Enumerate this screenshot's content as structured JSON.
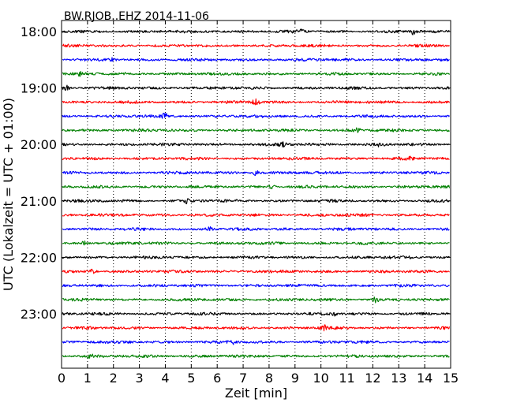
{
  "chart_data": {
    "type": "line",
    "title": "BW.RJOB..EHZ 2014-11-06",
    "xlabel": "Zeit  [min]",
    "ylabel": "UTC (Lokalzeit = UTC + 01:00)",
    "xlim": [
      0,
      15
    ],
    "x_ticks": [
      "0",
      "1",
      "2",
      "3",
      "4",
      "5",
      "6",
      "7",
      "8",
      "9",
      "10",
      "11",
      "12",
      "13",
      "14",
      "15"
    ],
    "y_ticks": [
      {
        "row": 0,
        "label": "18:00"
      },
      {
        "row": 4,
        "label": "19:00"
      },
      {
        "row": 8,
        "label": "20:00"
      },
      {
        "row": 12,
        "label": "21:00"
      },
      {
        "row": 16,
        "label": "22:00"
      },
      {
        "row": 20,
        "label": "23:00"
      }
    ],
    "grid": {
      "x": true,
      "style": "dotted"
    },
    "trace_colors": [
      "#000000",
      "#ff0000",
      "#0000ff",
      "#008000"
    ],
    "traces": [
      {
        "start": "18:00",
        "color": "#000000",
        "events": [
          {
            "minute": 9.2,
            "amp": 1.5
          },
          {
            "minute": 13.6,
            "amp": 2.2
          }
        ]
      },
      {
        "start": "18:15",
        "color": "#ff0000",
        "events": []
      },
      {
        "start": "18:30",
        "color": "#0000ff",
        "events": [
          {
            "minute": 2.0,
            "amp": 1.4
          }
        ]
      },
      {
        "start": "18:45",
        "color": "#008000",
        "events": [
          {
            "minute": 0.7,
            "amp": 1.3
          }
        ]
      },
      {
        "start": "19:00",
        "color": "#000000",
        "events": [
          {
            "minute": 0.2,
            "amp": 1.8
          }
        ]
      },
      {
        "start": "19:15",
        "color": "#ff0000",
        "events": [
          {
            "minute": 7.5,
            "amp": 2.4
          }
        ]
      },
      {
        "start": "19:30",
        "color": "#0000ff",
        "events": [
          {
            "minute": 4.0,
            "amp": 2.0
          }
        ]
      },
      {
        "start": "19:45",
        "color": "#008000",
        "events": [
          {
            "minute": 11.4,
            "amp": 1.4
          }
        ]
      },
      {
        "start": "20:00",
        "color": "#000000",
        "events": [
          {
            "minute": 8.5,
            "amp": 2.4
          },
          {
            "minute": 12.3,
            "amp": 1.6
          }
        ]
      },
      {
        "start": "20:15",
        "color": "#ff0000",
        "events": [
          {
            "minute": 13.4,
            "amp": 1.5
          }
        ]
      },
      {
        "start": "20:30",
        "color": "#0000ff",
        "events": [
          {
            "minute": 7.5,
            "amp": 1.8
          }
        ]
      },
      {
        "start": "20:45",
        "color": "#008000",
        "events": [
          {
            "minute": 8.1,
            "amp": 1.3
          }
        ]
      },
      {
        "start": "21:00",
        "color": "#000000",
        "events": [
          {
            "minute": 4.8,
            "amp": 1.4
          }
        ]
      },
      {
        "start": "21:15",
        "color": "#ff0000",
        "events": []
      },
      {
        "start": "21:30",
        "color": "#0000ff",
        "events": [
          {
            "minute": 5.7,
            "amp": 1.4
          }
        ]
      },
      {
        "start": "21:45",
        "color": "#008000",
        "events": [
          {
            "minute": 0.9,
            "amp": 1.6
          }
        ]
      },
      {
        "start": "22:00",
        "color": "#000000",
        "events": [
          {
            "minute": 13.4,
            "amp": 1.3
          }
        ]
      },
      {
        "start": "22:15",
        "color": "#ff0000",
        "events": [
          {
            "minute": 1.2,
            "amp": 1.3
          }
        ]
      },
      {
        "start": "22:30",
        "color": "#0000ff",
        "events": []
      },
      {
        "start": "22:45",
        "color": "#008000",
        "events": [
          {
            "minute": 12.1,
            "amp": 1.8
          }
        ]
      },
      {
        "start": "23:00",
        "color": "#000000",
        "events": [
          {
            "minute": 10.5,
            "amp": 1.5
          }
        ]
      },
      {
        "start": "23:15",
        "color": "#ff0000",
        "events": [
          {
            "minute": 10.1,
            "amp": 2.2
          }
        ]
      },
      {
        "start": "23:30",
        "color": "#0000ff",
        "events": [
          {
            "minute": 6.6,
            "amp": 1.3
          }
        ]
      },
      {
        "start": "23:45",
        "color": "#008000",
        "events": [
          {
            "minute": 1.1,
            "amp": 1.3
          }
        ]
      }
    ]
  }
}
